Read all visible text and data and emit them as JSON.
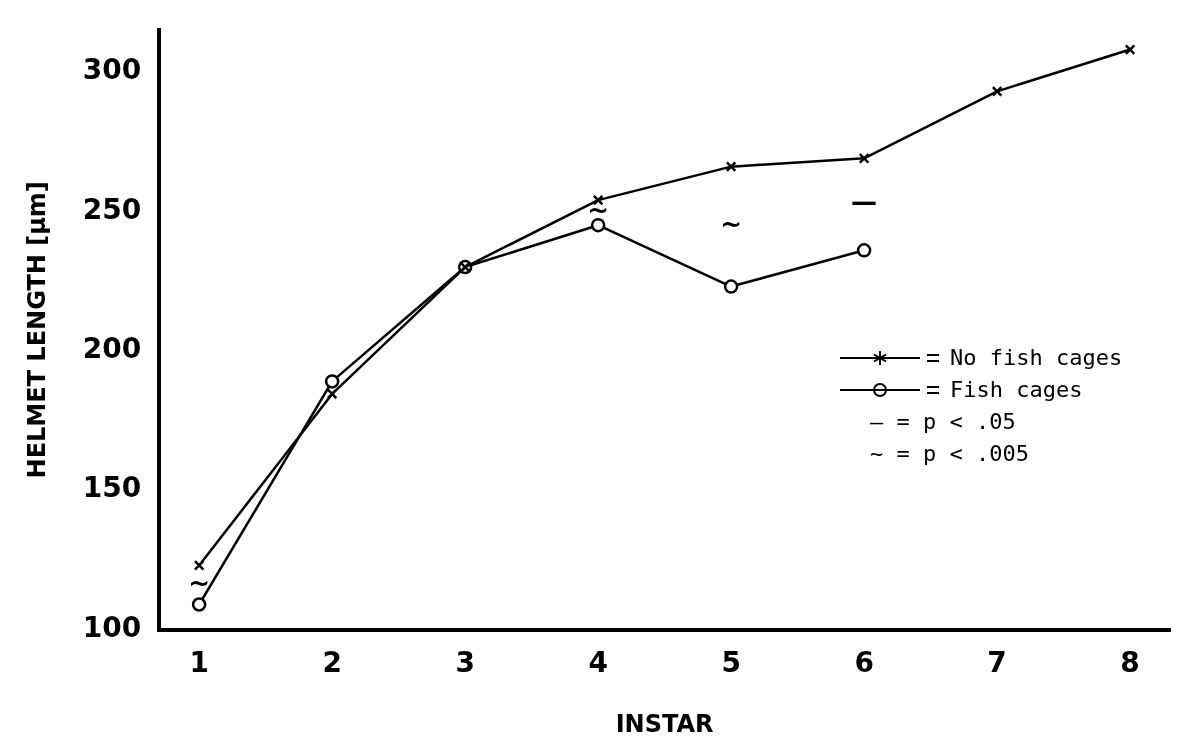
{
  "chart_data": {
    "type": "line",
    "xlabel": "INSTAR",
    "ylabel": "HELMET LENGTH [μm]",
    "x": [
      1,
      2,
      3,
      4,
      5,
      6,
      7,
      8
    ],
    "xlim": [
      0.7,
      8.3
    ],
    "xticks": [
      1,
      2,
      3,
      4,
      5,
      6,
      7,
      8
    ],
    "ylim": [
      100,
      315
    ],
    "yticks": [
      100,
      150,
      200,
      250,
      300
    ],
    "series": [
      {
        "name": "No fish cages",
        "color": "#000000",
        "marker": "cross",
        "values": [
          123,
          184.5,
          230,
          254,
          266,
          269,
          293,
          308
        ]
      },
      {
        "name": "Fish cages",
        "color": "#000000",
        "marker": "circle",
        "values": [
          109,
          189,
          230,
          245,
          223,
          236,
          null,
          null
        ]
      }
    ],
    "annotations": [
      {
        "text": "~",
        "x": 1,
        "y": 123
      },
      {
        "text": "~",
        "x": 4,
        "y": 254
      },
      {
        "text": "~",
        "x": 5,
        "y": 266
      },
      {
        "text": "—",
        "x": 6,
        "y": 269
      },
      "— = p < .05",
      "~ = p < .005"
    ],
    "grid": false,
    "legend": "right",
    "line_style": "solid"
  }
}
